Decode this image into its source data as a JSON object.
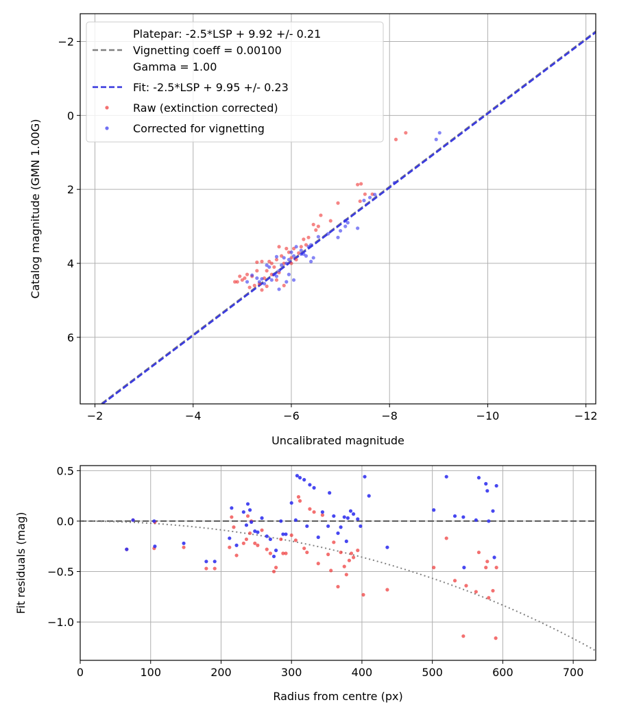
{
  "chart_data": [
    {
      "type": "scatter",
      "title": "",
      "xlabel": "Uncalibrated magnitude",
      "ylabel": "Catalog magnitude (GMN 1.00G)",
      "xlim": [
        -1.7,
        -12.2
      ],
      "ylim": [
        7.8,
        -2.75
      ],
      "xticks": [
        -2,
        -4,
        -6,
        -8,
        -10,
        -12
      ],
      "xtick_labels": [
        "−2",
        "−4",
        "−6",
        "−8",
        "−10",
        "−12"
      ],
      "yticks": [
        -2,
        0,
        2,
        4,
        6
      ],
      "ytick_labels": [
        "−2",
        "0",
        "2",
        "4",
        "6"
      ],
      "grid": true,
      "legend_position": "top-left",
      "legend": [
        {
          "kind": "dashed-line",
          "color": "#808080",
          "lines": [
            "Platepar: -2.5*LSP + 9.92 +/- 0.21",
            "Vignetting coeff = 0.00100",
            "Gamma = 1.00"
          ]
        },
        {
          "kind": "dashed-line",
          "color": "#3333dd",
          "lines": [
            "Fit: -2.5*LSP + 9.95 +/- 0.23"
          ]
        },
        {
          "kind": "marker",
          "color": "#ee3333",
          "lines": [
            "Raw (extinction corrected)"
          ]
        },
        {
          "kind": "marker",
          "color": "#3333ee",
          "lines": [
            "Corrected for vignetting"
          ]
        }
      ],
      "lines": [
        {
          "name": "Platepar",
          "slope": 1,
          "intercept": 9.92,
          "color": "#808080",
          "style": "dashed"
        },
        {
          "name": "Fit",
          "slope": 1,
          "intercept": 9.95,
          "color": "#3333dd",
          "style": "dashed"
        }
      ],
      "series": [
        {
          "name": "Raw (extinction corrected)",
          "color": "#ee3333",
          "points": [
            [
              -8.33,
              0.47
            ],
            [
              -8.13,
              0.65
            ],
            [
              -7.65,
              2.13
            ],
            [
              -7.5,
              2.13
            ],
            [
              -7.42,
              1.85
            ],
            [
              -7.35,
              1.87
            ],
            [
              -7.4,
              2.32
            ],
            [
              -6.95,
              2.37
            ],
            [
              -6.8,
              2.85
            ],
            [
              -6.6,
              2.7
            ],
            [
              -6.55,
              3.0
            ],
            [
              -6.5,
              3.1
            ],
            [
              -6.45,
              2.95
            ],
            [
              -6.35,
              3.3
            ],
            [
              -6.3,
              3.5
            ],
            [
              -6.25,
              3.35
            ],
            [
              -6.2,
              3.55
            ],
            [
              -6.15,
              3.72
            ],
            [
              -6.1,
              3.9
            ],
            [
              -6.05,
              3.6
            ],
            [
              -6.0,
              3.85
            ],
            [
              -5.95,
              3.7
            ],
            [
              -5.9,
              3.6
            ],
            [
              -5.85,
              4.0
            ],
            [
              -5.8,
              3.8
            ],
            [
              -5.75,
              3.55
            ],
            [
              -5.7,
              3.9
            ],
            [
              -5.65,
              4.1
            ],
            [
              -5.6,
              4.3
            ],
            [
              -5.55,
              3.95
            ],
            [
              -5.5,
              4.2
            ],
            [
              -5.45,
              4.4
            ],
            [
              -5.4,
              3.95
            ],
            [
              -5.35,
              4.55
            ],
            [
              -5.3,
              4.2
            ],
            [
              -5.25,
              4.6
            ],
            [
              -5.2,
              4.35
            ],
            [
              -5.15,
              4.65
            ],
            [
              -5.1,
              4.3
            ],
            [
              -5.05,
              4.4
            ],
            [
              -5.0,
              4.45
            ],
            [
              -4.95,
              4.35
            ],
            [
              -4.9,
              4.5
            ],
            [
              -4.85,
              4.5
            ],
            [
              -5.4,
              4.72
            ],
            [
              -5.5,
              4.62
            ],
            [
              -5.7,
              4.45
            ],
            [
              -5.85,
              4.6
            ],
            [
              -5.6,
              4.0
            ],
            [
              -5.3,
              3.97
            ],
            [
              -6.0,
              4.0
            ],
            [
              -5.75,
              4.25
            ]
          ]
        },
        {
          "name": "Corrected for vignetting",
          "color": "#3333ee",
          "points": [
            [
              -9.02,
              0.47
            ],
            [
              -8.95,
              0.65
            ],
            [
              -8.1,
              1.82
            ],
            [
              -7.7,
              2.14
            ],
            [
              -7.6,
              2.22
            ],
            [
              -7.48,
              2.3
            ],
            [
              -7.35,
              3.05
            ],
            [
              -7.15,
              2.9
            ],
            [
              -7.1,
              2.85
            ],
            [
              -7.1,
              3.0
            ],
            [
              -7.0,
              3.12
            ],
            [
              -6.95,
              3.3
            ],
            [
              -6.75,
              3.2
            ],
            [
              -6.55,
              3.28
            ],
            [
              -6.4,
              3.5
            ],
            [
              -6.35,
              3.55
            ],
            [
              -6.3,
              3.8
            ],
            [
              -6.25,
              3.75
            ],
            [
              -6.2,
              3.65
            ],
            [
              -6.1,
              3.55
            ],
            [
              -6.05,
              3.8
            ],
            [
              -6.0,
              3.7
            ],
            [
              -5.95,
              3.9
            ],
            [
              -5.9,
              4.0
            ],
            [
              -5.85,
              3.85
            ],
            [
              -5.8,
              4.05
            ],
            [
              -5.75,
              4.2
            ],
            [
              -5.7,
              4.35
            ],
            [
              -5.65,
              4.3
            ],
            [
              -5.6,
              4.45
            ],
            [
              -5.55,
              4.1
            ],
            [
              -5.5,
              4.05
            ],
            [
              -5.45,
              4.55
            ],
            [
              -5.4,
              4.42
            ],
            [
              -5.35,
              4.5
            ],
            [
              -5.3,
              4.4
            ],
            [
              -5.2,
              4.32
            ],
            [
              -5.1,
              4.5
            ],
            [
              -6.4,
              3.95
            ],
            [
              -6.05,
              4.45
            ],
            [
              -5.75,
              4.7
            ],
            [
              -5.9,
              4.5
            ],
            [
              -6.45,
              3.85
            ],
            [
              -6.2,
              3.75
            ],
            [
              -5.7,
              3.82
            ],
            [
              -5.95,
              4.3
            ]
          ]
        }
      ]
    },
    {
      "type": "scatter",
      "title": "",
      "xlabel": "Radius from centre (px)",
      "ylabel": "Fit residuals (mag)",
      "xlim": [
        0,
        732
      ],
      "ylim": [
        -1.38,
        0.55
      ],
      "xticks": [
        0,
        100,
        200,
        300,
        400,
        500,
        600,
        700
      ],
      "xtick_labels": [
        "0",
        "100",
        "200",
        "300",
        "400",
        "500",
        "600",
        "700"
      ],
      "yticks": [
        0.5,
        0.0,
        -0.5,
        -1.0
      ],
      "ytick_labels": [
        "0.5",
        "0.0",
        "−0.5",
        "−1.0"
      ],
      "grid": true,
      "lines": [
        {
          "name": "zero",
          "value": 0.0,
          "color": "#555555",
          "style": "dashed"
        },
        {
          "name": "vignetting",
          "coeff": 0.001,
          "color": "#808080",
          "style": "dotted"
        }
      ],
      "series": [
        {
          "name": "Raw (extinction corrected)",
          "color": "#ee3333",
          "points": [
            [
              66,
              -0.28
            ],
            [
              75,
              0.01
            ],
            [
              105,
              -0.27
            ],
            [
              106,
              -0.01
            ],
            [
              147,
              -0.26
            ],
            [
              179,
              -0.47
            ],
            [
              191,
              -0.47
            ],
            [
              212,
              -0.26
            ],
            [
              215,
              0.04
            ],
            [
              218,
              -0.06
            ],
            [
              222,
              -0.34
            ],
            [
              232,
              -0.22
            ],
            [
              236,
              -0.18
            ],
            [
              238,
              0.05
            ],
            [
              241,
              -0.12
            ],
            [
              243,
              0.0
            ],
            [
              248,
              -0.22
            ],
            [
              252,
              -0.24
            ],
            [
              258,
              -0.09
            ],
            [
              265,
              -0.28
            ],
            [
              270,
              -0.32
            ],
            [
              275,
              -0.5
            ],
            [
              278,
              -0.46
            ],
            [
              285,
              -0.18
            ],
            [
              288,
              -0.32
            ],
            [
              292,
              -0.32
            ],
            [
              300,
              -0.14
            ],
            [
              306,
              -0.19
            ],
            [
              310,
              0.24
            ],
            [
              312,
              0.2
            ],
            [
              318,
              -0.27
            ],
            [
              322,
              -0.31
            ],
            [
              326,
              0.12
            ],
            [
              332,
              0.09
            ],
            [
              338,
              -0.42
            ],
            [
              344,
              0.06
            ],
            [
              352,
              -0.33
            ],
            [
              356,
              -0.49
            ],
            [
              360,
              -0.21
            ],
            [
              366,
              -0.65
            ],
            [
              370,
              -0.31
            ],
            [
              375,
              -0.45
            ],
            [
              378,
              -0.53
            ],
            [
              382,
              -0.39
            ],
            [
              385,
              -0.32
            ],
            [
              388,
              -0.36
            ],
            [
              394,
              -0.29
            ],
            [
              402,
              -0.73
            ],
            [
              436,
              -0.68
            ],
            [
              502,
              -0.46
            ],
            [
              520,
              -0.17
            ],
            [
              532,
              -0.59
            ],
            [
              544,
              -1.14
            ],
            [
              548,
              -0.64
            ],
            [
              562,
              -0.7
            ],
            [
              566,
              -0.31
            ],
            [
              576,
              -0.46
            ],
            [
              578,
              -0.4
            ],
            [
              580,
              -0.76
            ],
            [
              586,
              -0.69
            ],
            [
              590,
              -1.16
            ],
            [
              591,
              -0.46
            ]
          ]
        },
        {
          "name": "Corrected for vignetting",
          "color": "#3333ee",
          "points": [
            [
              66,
              -0.28
            ],
            [
              75,
              0.01
            ],
            [
              105,
              0.0
            ],
            [
              106,
              -0.25
            ],
            [
              147,
              -0.22
            ],
            [
              179,
              -0.4
            ],
            [
              191,
              -0.4
            ],
            [
              212,
              -0.17
            ],
            [
              215,
              0.13
            ],
            [
              222,
              -0.24
            ],
            [
              232,
              0.09
            ],
            [
              236,
              -0.04
            ],
            [
              238,
              0.17
            ],
            [
              241,
              0.11
            ],
            [
              243,
              -0.01
            ],
            [
              248,
              -0.1
            ],
            [
              252,
              -0.11
            ],
            [
              258,
              0.03
            ],
            [
              265,
              -0.15
            ],
            [
              270,
              -0.18
            ],
            [
              275,
              -0.35
            ],
            [
              278,
              -0.29
            ],
            [
              285,
              0.0
            ],
            [
              288,
              -0.13
            ],
            [
              292,
              -0.13
            ],
            [
              300,
              0.18
            ],
            [
              306,
              0.01
            ],
            [
              308,
              0.45
            ],
            [
              312,
              0.43
            ],
            [
              318,
              0.41
            ],
            [
              322,
              -0.05
            ],
            [
              326,
              0.36
            ],
            [
              332,
              0.33
            ],
            [
              338,
              -0.16
            ],
            [
              344,
              0.09
            ],
            [
              352,
              -0.05
            ],
            [
              354,
              0.28
            ],
            [
              360,
              0.05
            ],
            [
              366,
              -0.12
            ],
            [
              370,
              -0.06
            ],
            [
              375,
              0.04
            ],
            [
              378,
              -0.2
            ],
            [
              380,
              0.03
            ],
            [
              384,
              0.1
            ],
            [
              388,
              0.07
            ],
            [
              394,
              0.02
            ],
            [
              398,
              -0.05
            ],
            [
              404,
              0.44
            ],
            [
              410,
              0.25
            ],
            [
              436,
              -0.26
            ],
            [
              502,
              0.11
            ],
            [
              520,
              0.44
            ],
            [
              532,
              0.05
            ],
            [
              544,
              0.04
            ],
            [
              545,
              -0.46
            ],
            [
              562,
              0.01
            ],
            [
              566,
              0.43
            ],
            [
              576,
              0.37
            ],
            [
              578,
              0.3
            ],
            [
              580,
              0.0
            ],
            [
              586,
              0.1
            ],
            [
              588,
              -0.36
            ],
            [
              591,
              0.35
            ]
          ]
        }
      ]
    }
  ]
}
